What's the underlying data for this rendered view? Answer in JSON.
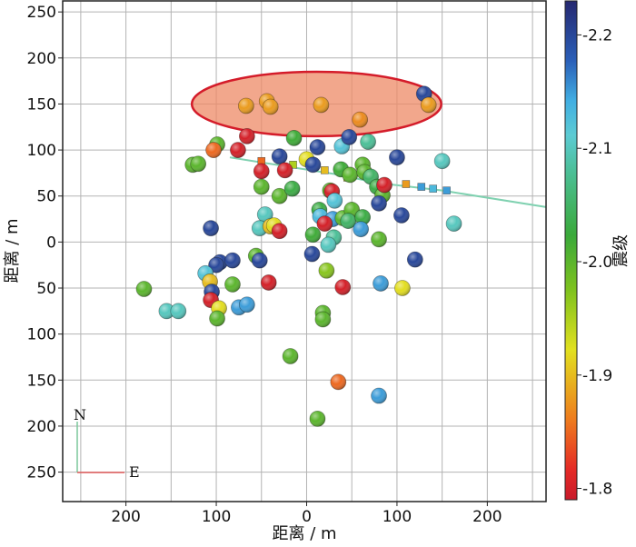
{
  "chart_data": {
    "type": "scatter",
    "title": "",
    "xlabel": "距离 / m",
    "ylabel": "距离 / m",
    "colorbar_label": "震级",
    "xlim": [
      -270,
      265
    ],
    "ylim": [
      -282,
      262
    ],
    "x_tick_values": [
      -200,
      -100,
      0,
      100,
      200
    ],
    "x_tick_labels": [
      "200",
      "100",
      "0",
      "100",
      "200"
    ],
    "y_tick_values": [
      250,
      200,
      150,
      100,
      50,
      0,
      -50,
      -100,
      -150,
      -200,
      -250
    ],
    "y_tick_labels": [
      "250",
      "200",
      "150",
      "100",
      "50",
      "0",
      "50",
      "100",
      "150",
      "200",
      "250"
    ],
    "colorbar": {
      "min": 1.79,
      "max": 2.23,
      "ticks": [
        2.2,
        2.1,
        2.0,
        1.9,
        1.8
      ],
      "tick_labels": [
        "-2.2",
        "-2.1",
        "-2.0",
        "-1.9",
        "-1.8"
      ]
    },
    "grid": true,
    "compass": {
      "north": "N",
      "east": "E"
    },
    "highlight_ellipse": {
      "center": [
        11,
        150
      ],
      "rx": 138,
      "ry": 35
    },
    "well_trajectory": {
      "path": [
        [
          -85,
          92
        ],
        [
          30,
          74
        ],
        [
          80,
          64
        ],
        [
          150,
          56
        ],
        [
          265,
          38
        ]
      ],
      "stage_markers": [
        [
          -50,
          88
        ],
        [
          -15,
          84
        ],
        [
          20,
          78
        ],
        [
          45,
          70
        ],
        [
          110,
          63
        ],
        [
          127,
          60
        ],
        [
          140,
          58
        ],
        [
          155,
          56
        ]
      ],
      "stage_magnitudes": [
        1.85,
        1.95,
        1.9,
        1.93,
        1.88,
        2.15,
        2.13,
        2.15
      ]
    },
    "points": [
      {
        "x": -67,
        "y": 148,
        "m": 1.88
      },
      {
        "x": -44,
        "y": 153,
        "m": 1.88
      },
      {
        "x": -40,
        "y": 147,
        "m": 1.88
      },
      {
        "x": 16,
        "y": 149,
        "m": 1.88
      },
      {
        "x": 59,
        "y": 133,
        "m": 1.87
      },
      {
        "x": 130,
        "y": 161,
        "m": 2.2
      },
      {
        "x": 135,
        "y": 149,
        "m": 1.88
      },
      {
        "x": -99,
        "y": 106,
        "m": 2.0
      },
      {
        "x": -66,
        "y": 115,
        "m": 1.8
      },
      {
        "x": -103,
        "y": 100,
        "m": 1.85
      },
      {
        "x": -76,
        "y": 100,
        "m": 1.8
      },
      {
        "x": -126,
        "y": 84,
        "m": 2.0
      },
      {
        "x": -30,
        "y": 93,
        "m": 2.2
      },
      {
        "x": -14,
        "y": 113,
        "m": 2.02
      },
      {
        "x": 12,
        "y": 103,
        "m": 2.2
      },
      {
        "x": 39,
        "y": 104,
        "m": 2.12
      },
      {
        "x": 47,
        "y": 114,
        "m": 2.2
      },
      {
        "x": 68,
        "y": 109,
        "m": 2.08
      },
      {
        "x": 100,
        "y": 92,
        "m": 2.2
      },
      {
        "x": 150,
        "y": 88,
        "m": 2.1
      },
      {
        "x": 0,
        "y": 90,
        "m": 1.92
      },
      {
        "x": 7,
        "y": 84,
        "m": 2.2
      },
      {
        "x": -24,
        "y": 78,
        "m": 1.8
      },
      {
        "x": -50,
        "y": 77,
        "m": 1.8
      },
      {
        "x": -50,
        "y": 60,
        "m": 2.0
      },
      {
        "x": -30,
        "y": 50,
        "m": 2.0
      },
      {
        "x": -16,
        "y": 58,
        "m": 2.03
      },
      {
        "x": 38,
        "y": 79,
        "m": 2.02
      },
      {
        "x": 48,
        "y": 73,
        "m": 2.0
      },
      {
        "x": 62,
        "y": 84,
        "m": 2.0
      },
      {
        "x": 64,
        "y": 76,
        "m": 2.0
      },
      {
        "x": 71,
        "y": 71,
        "m": 2.05
      },
      {
        "x": 78,
        "y": 60,
        "m": 2.03
      },
      {
        "x": 84,
        "y": 51,
        "m": 2.0
      },
      {
        "x": 86,
        "y": 62,
        "m": 1.8
      },
      {
        "x": 26,
        "y": 56,
        "m": 2.0
      },
      {
        "x": 28,
        "y": 55,
        "m": 1.8
      },
      {
        "x": 31,
        "y": 45,
        "m": 2.12
      },
      {
        "x": 14,
        "y": 35,
        "m": 2.03
      },
      {
        "x": 15,
        "y": 28,
        "m": 2.13
      },
      {
        "x": 29,
        "y": 25,
        "m": 2.15
      },
      {
        "x": 40,
        "y": 26,
        "m": 2.0
      },
      {
        "x": 50,
        "y": 35,
        "m": 2.0
      },
      {
        "x": 46,
        "y": 23,
        "m": 2.05
      },
      {
        "x": 62,
        "y": 27,
        "m": 2.03
      },
      {
        "x": 60,
        "y": 14,
        "m": 2.15
      },
      {
        "x": 80,
        "y": 42,
        "m": 2.2
      },
      {
        "x": 105,
        "y": 29,
        "m": 2.2
      },
      {
        "x": 163,
        "y": 20,
        "m": 2.1
      },
      {
        "x": -106,
        "y": 15,
        "m": 2.2
      },
      {
        "x": -120,
        "y": 85,
        "m": 2.0
      },
      {
        "x": -46,
        "y": 30,
        "m": 2.1
      },
      {
        "x": -52,
        "y": 15,
        "m": 2.1
      },
      {
        "x": -40,
        "y": 17,
        "m": 1.9
      },
      {
        "x": -36,
        "y": 18,
        "m": 1.92
      },
      {
        "x": -30,
        "y": 12,
        "m": 1.8
      },
      {
        "x": 7,
        "y": 8,
        "m": 2.02
      },
      {
        "x": 20,
        "y": 20,
        "m": 1.8
      },
      {
        "x": 30,
        "y": 5,
        "m": 2.08
      },
      {
        "x": 24,
        "y": -3,
        "m": 2.1
      },
      {
        "x": 80,
        "y": 3,
        "m": 2.0
      },
      {
        "x": -56,
        "y": -15,
        "m": 2.0
      },
      {
        "x": -96,
        "y": -22,
        "m": 2.2
      },
      {
        "x": -82,
        "y": -20,
        "m": 2.2
      },
      {
        "x": -100,
        "y": -25,
        "m": 2.2
      },
      {
        "x": -52,
        "y": -20,
        "m": 2.2
      },
      {
        "x": 6,
        "y": -13,
        "m": 2.2
      },
      {
        "x": 22,
        "y": -31,
        "m": 1.97
      },
      {
        "x": 120,
        "y": -19,
        "m": 2.2
      },
      {
        "x": -180,
        "y": -51,
        "m": 2.0
      },
      {
        "x": -112,
        "y": -34,
        "m": 2.12
      },
      {
        "x": -107,
        "y": -43,
        "m": 1.9
      },
      {
        "x": -105,
        "y": -54,
        "m": 2.2
      },
      {
        "x": -106,
        "y": -63,
        "m": 1.8
      },
      {
        "x": -82,
        "y": -46,
        "m": 2.0
      },
      {
        "x": -42,
        "y": -44,
        "m": 1.8
      },
      {
        "x": 40,
        "y": -49,
        "m": 1.8
      },
      {
        "x": 82,
        "y": -45,
        "m": 2.15
      },
      {
        "x": 106,
        "y": -50,
        "m": 1.92
      },
      {
        "x": -155,
        "y": -75,
        "m": 2.1
      },
      {
        "x": -142,
        "y": -75,
        "m": 2.1
      },
      {
        "x": -97,
        "y": -72,
        "m": 1.92
      },
      {
        "x": -99,
        "y": -83,
        "m": 2.0
      },
      {
        "x": -75,
        "y": -71,
        "m": 2.15
      },
      {
        "x": -66,
        "y": -68,
        "m": 2.15
      },
      {
        "x": 18,
        "y": -77,
        "m": 2.0
      },
      {
        "x": 18,
        "y": -84,
        "m": 2.0
      },
      {
        "x": -18,
        "y": -124,
        "m": 2.0
      },
      {
        "x": 35,
        "y": -152,
        "m": 1.85
      },
      {
        "x": 80,
        "y": -167,
        "m": 2.15
      },
      {
        "x": 12,
        "y": -192,
        "m": 2.0
      }
    ]
  }
}
